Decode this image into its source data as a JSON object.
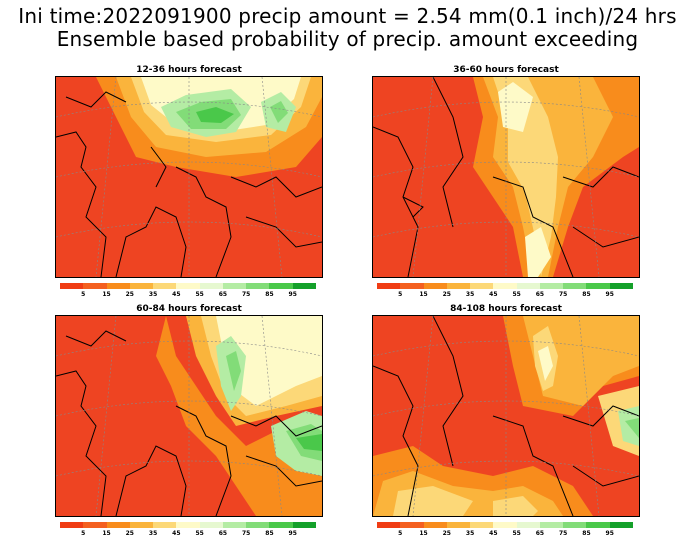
{
  "title_line1": "Ini time:2022091900 precip amount = 2.54 mm(0.1 inch)/24 hrs",
  "title_line2": "Ensemble based probability of precip. amount exceeding",
  "panels": [
    {
      "title": "12-36 hours forecast"
    },
    {
      "title": "36-60 hours forecast"
    },
    {
      "title": "60-84 hours forecast"
    },
    {
      "title": "84-108 hours forecast"
    }
  ],
  "colorbar": {
    "colors": [
      "#f03c14",
      "#f46020",
      "#f88c1c",
      "#fab43c",
      "#fcd878",
      "#fefac8",
      "#e6f8d0",
      "#b4eca4",
      "#82dc78",
      "#4ac84a",
      "#14a02a"
    ],
    "labels": [
      "5",
      "15",
      "25",
      "35",
      "45",
      "55",
      "65",
      "75",
      "85",
      "95"
    ]
  }
}
